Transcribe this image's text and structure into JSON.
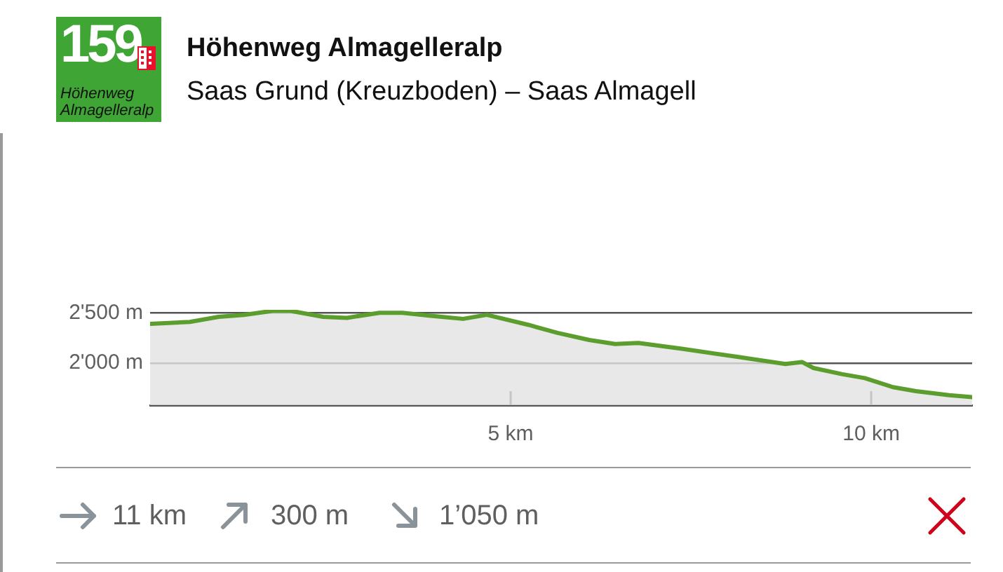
{
  "chart_data": {
    "type": "area",
    "title": "Höhenweg Almagelleralp",
    "subtitle": "Saas Grund (Kreuzboden) – Saas Almagell",
    "x": [
      0,
      0.55,
      0.95,
      1.3,
      1.7,
      1.95,
      2.4,
      2.73,
      3.18,
      3.5,
      3.89,
      4.34,
      4.67,
      5.25,
      5.65,
      6.09,
      6.45,
      6.77,
      7.39,
      8.16,
      8.81,
      9.04,
      9.2,
      9.59,
      9.91,
      10.3,
      10.62,
      11.08,
      11.4
    ],
    "values": [
      2390,
      2410,
      2460,
      2480,
      2520,
      2520,
      2460,
      2450,
      2500,
      2500,
      2470,
      2440,
      2480,
      2380,
      2300,
      2230,
      2190,
      2200,
      2140,
      2060,
      1990,
      2010,
      1950,
      1890,
      1850,
      1760,
      1720,
      1680,
      1660
    ],
    "color": "#5c9e2e",
    "xlim": [
      0,
      11.4
    ],
    "xticks": [
      {
        "value": 5,
        "label": "5 km"
      },
      {
        "value": 10,
        "label": "10 km"
      }
    ],
    "ylim": [
      1580,
      2530
    ],
    "yticks": [
      {
        "value": 2000,
        "label": "2'000 m"
      },
      {
        "value": 2500,
        "label": "2'500 m"
      }
    ],
    "grid": "y",
    "legend": false,
    "marker": "none",
    "annotations": [
      "159",
      "Höhenweg Almagelleralp",
      "11 km",
      "300 m",
      "1’050 m"
    ]
  }
}
